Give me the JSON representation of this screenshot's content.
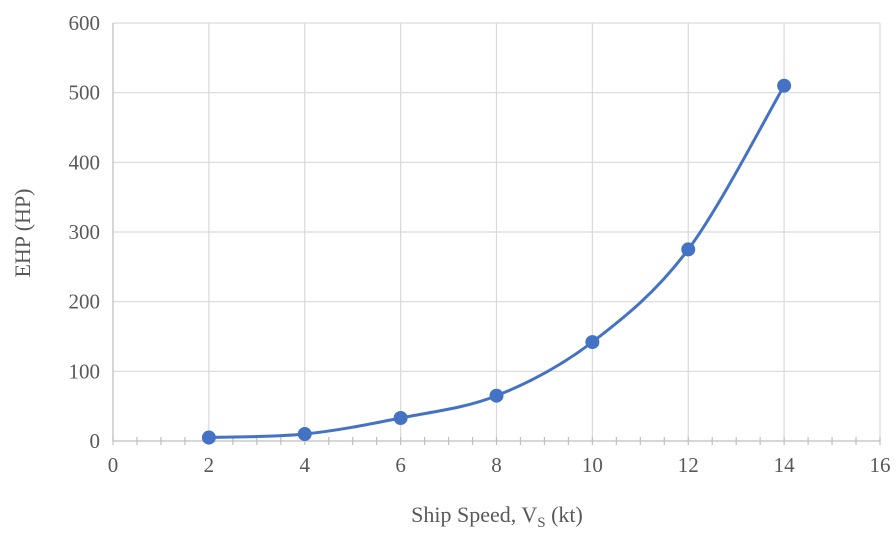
{
  "chart_data": {
    "type": "scatter",
    "title": "",
    "xlabel": "Ship Speed, V",
    "xlabel_subscript": "S",
    "xlabel_suffix": " (kt)",
    "ylabel": "EHP (HP)",
    "xlim": [
      0,
      16
    ],
    "ylim": [
      0,
      600
    ],
    "xticks": [
      0,
      2,
      4,
      6,
      8,
      10,
      12,
      14,
      16
    ],
    "yticks": [
      0,
      100,
      200,
      300,
      400,
      500,
      600
    ],
    "grid": true,
    "smooth_line": true,
    "series": [
      {
        "x": [
          2,
          4,
          6,
          8,
          10,
          12,
          14
        ],
        "y": [
          5,
          10,
          33,
          65,
          142,
          275,
          510
        ],
        "color": "#4472c4"
      }
    ]
  }
}
